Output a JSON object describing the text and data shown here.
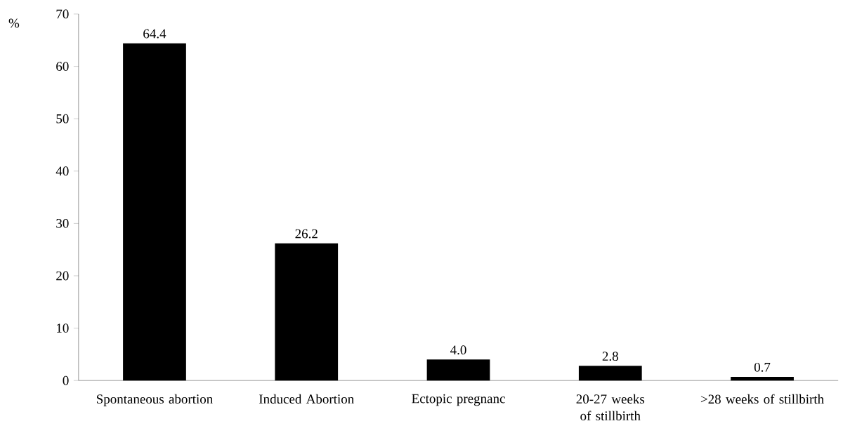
{
  "chart_data": {
    "type": "bar",
    "ylabel": "%",
    "categories": [
      "Spontaneous abortion",
      "Induced Abortion",
      "Ectopic pregnanc",
      "20-27 weeks of stillbirth",
      ">28 weeks of stillbirth"
    ],
    "values": [
      64.4,
      26.2,
      4.0,
      2.8,
      0.7
    ],
    "color": "#000000",
    "ylim": [
      0,
      70
    ],
    "yticks": [
      0,
      10,
      20,
      30,
      40,
      50,
      60,
      70
    ],
    "value_labels": [
      "64.4",
      "26.2",
      "4.0",
      "2.8",
      "0.7"
    ],
    "grid": false
  }
}
